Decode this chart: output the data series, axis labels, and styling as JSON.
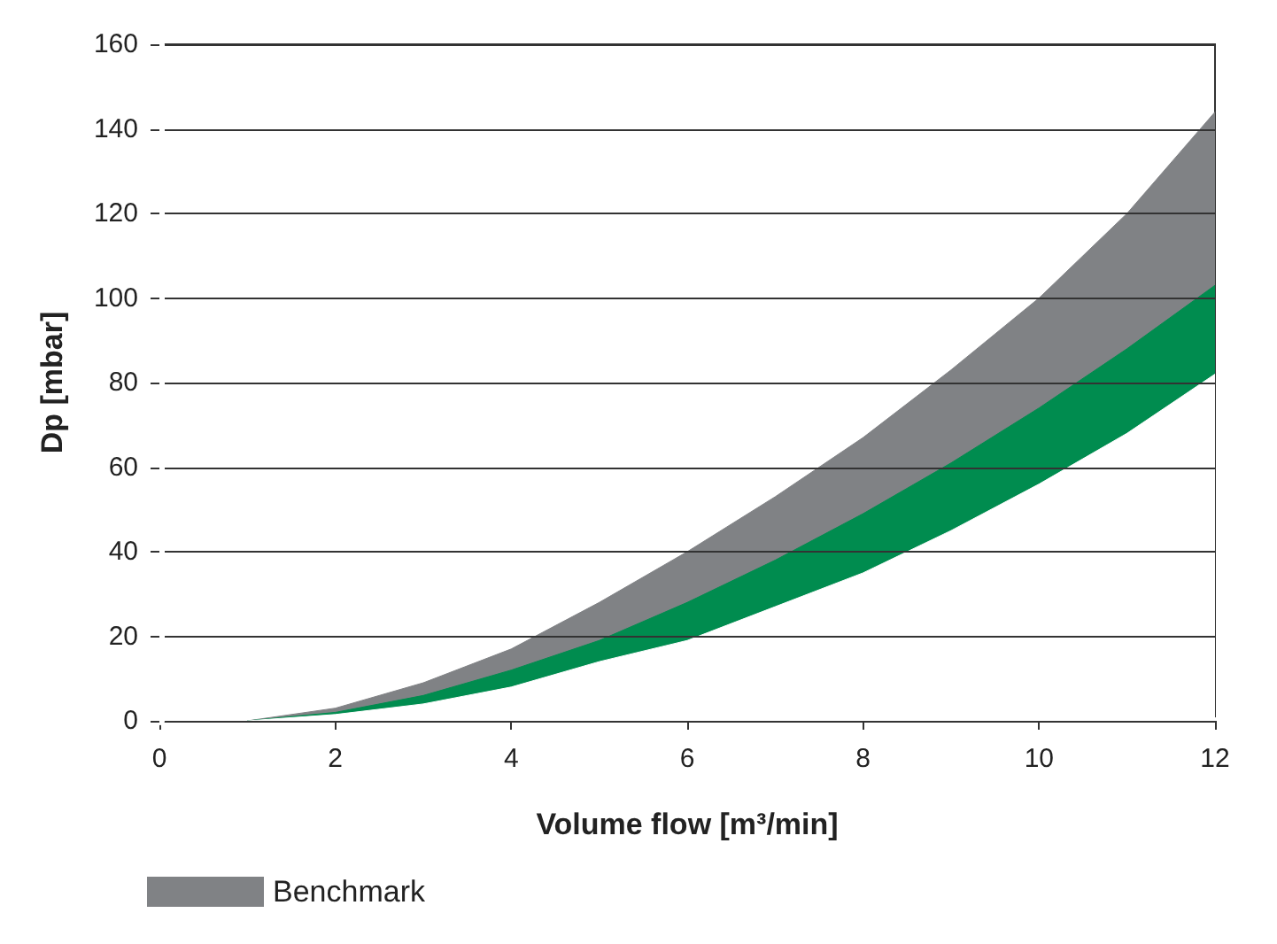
{
  "chart_data": {
    "type": "area",
    "xlabel": "Volume flow [m³/min]",
    "ylabel": "Dp [mbar]",
    "x": [
      1,
      2,
      3,
      4,
      5,
      6,
      7,
      8,
      9,
      10,
      11,
      12
    ],
    "series": [
      {
        "name": "Benchmark",
        "color": "#808285",
        "values": [
          0,
          3,
          9,
          17,
          28,
          40,
          53,
          67,
          83,
          100,
          120,
          144
        ]
      },
      {
        "color": "#008c4f",
        "values": [
          0,
          2,
          6,
          12,
          19,
          28,
          38,
          49,
          61,
          74,
          88,
          103
        ]
      },
      {
        "color": "#ffffff",
        "values": [
          0,
          1.5,
          4,
          8,
          14,
          19,
          27,
          35,
          45,
          56,
          68,
          82
        ]
      }
    ],
    "xlim": [
      0,
      12
    ],
    "xticks": [
      0,
      2,
      4,
      6,
      8,
      10,
      12
    ],
    "ylim": [
      0,
      160
    ],
    "yticks": [
      0,
      20,
      40,
      60,
      80,
      100,
      120,
      140,
      160
    ],
    "grid": "y",
    "legend": "bottom"
  }
}
